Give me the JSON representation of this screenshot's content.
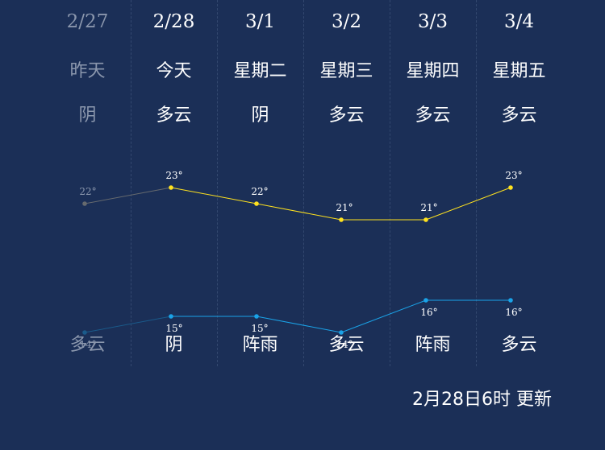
{
  "days": [
    {
      "date": "2/27",
      "day_name": "昨天",
      "day_weather": "阴",
      "night_weather": "多云",
      "high": 22,
      "low": 14,
      "past": true
    },
    {
      "date": "2/28",
      "day_name": "今天",
      "day_weather": "多云",
      "night_weather": "阴",
      "high": 23,
      "low": 15,
      "past": false
    },
    {
      "date": "3/1",
      "day_name": "星期二",
      "day_weather": "阴",
      "night_weather": "阵雨",
      "high": 22,
      "low": 15,
      "past": false
    },
    {
      "date": "3/2",
      "day_name": "星期三",
      "day_weather": "多云",
      "night_weather": "多云",
      "high": 21,
      "low": 14,
      "past": false
    },
    {
      "date": "3/3",
      "day_name": "星期四",
      "day_weather": "多云",
      "night_weather": "阵雨",
      "high": 21,
      "low": 16,
      "past": false
    },
    {
      "date": "3/4",
      "day_name": "星期五",
      "day_weather": "多云",
      "night_weather": "多云",
      "high": 23,
      "low": 16,
      "past": false
    }
  ],
  "temp_unit": "°",
  "colors": {
    "background": "#1b2f57",
    "high_line": "#ffe21f",
    "low_line": "#1aa3e8",
    "past_high": "#666a6e",
    "past_low": "#1a5a8a",
    "past_text": "#8b97ad"
  },
  "update_text": "2月28日6时 更新"
}
